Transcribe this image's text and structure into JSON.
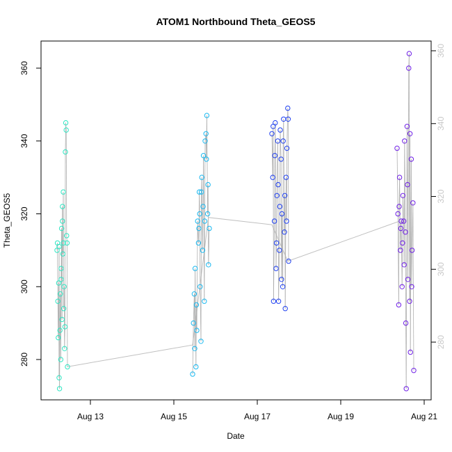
{
  "chart_data": {
    "type": "scatter",
    "title": "ATOM1 Northbound Theta_GEOS5",
    "xlabel": "Date",
    "ylabel": "Theta_GEOS5",
    "x_unit": "days since Aug 12 00:00",
    "xlim": [
      12.0,
      20.9
    ],
    "ylim": [
      271,
      364
    ],
    "x_ticks": [
      {
        "value": 13,
        "label": "Aug 13"
      },
      {
        "value": 15,
        "label": "Aug 15"
      },
      {
        "value": 17,
        "label": "Aug 17"
      },
      {
        "value": 19,
        "label": "Aug 19"
      },
      {
        "value": 21,
        "label": "Aug 21"
      }
    ],
    "y_ticks_left": [
      280,
      300,
      320,
      340,
      360
    ],
    "y_ticks_right": [
      280,
      300,
      320,
      340,
      360
    ],
    "connector_line_color": "#c0c0c0",
    "grid": false,
    "legend": "none",
    "series": [
      {
        "color": "#2ee6c3",
        "x_range": [
          12.2,
          12.45
        ],
        "points": [
          [
            12.2,
            310
          ],
          [
            12.22,
            296
          ],
          [
            12.23,
            286
          ],
          [
            12.25,
            275
          ],
          [
            12.26,
            272
          ],
          [
            12.28,
            298
          ],
          [
            12.3,
            305
          ],
          [
            12.31,
            316
          ],
          [
            12.33,
            322
          ],
          [
            12.35,
            312
          ],
          [
            12.36,
            294
          ],
          [
            12.38,
            283
          ],
          [
            12.4,
            337
          ],
          [
            12.41,
            345
          ],
          [
            12.42,
            343
          ],
          [
            12.44,
            312
          ],
          [
            12.45,
            278
          ],
          [
            12.3,
            302
          ],
          [
            12.32,
            291
          ],
          [
            12.34,
            309
          ],
          [
            12.37,
            300
          ],
          [
            12.39,
            289
          ],
          [
            12.21,
            312
          ],
          [
            12.24,
            301
          ],
          [
            12.27,
            288
          ],
          [
            12.29,
            280
          ],
          [
            12.43,
            314
          ],
          [
            12.25,
            311
          ],
          [
            12.33,
            318
          ],
          [
            12.35,
            326
          ]
        ]
      },
      {
        "color": "#19b8f0",
        "x_range": [
          15.45,
          15.85
        ],
        "points": [
          [
            15.45,
            276
          ],
          [
            15.47,
            290
          ],
          [
            15.49,
            298
          ],
          [
            15.51,
            305
          ],
          [
            15.53,
            278
          ],
          [
            15.55,
            288
          ],
          [
            15.57,
            318
          ],
          [
            15.59,
            312
          ],
          [
            15.61,
            326
          ],
          [
            15.63,
            300
          ],
          [
            15.65,
            285
          ],
          [
            15.67,
            330
          ],
          [
            15.69,
            310
          ],
          [
            15.71,
            336
          ],
          [
            15.73,
            296
          ],
          [
            15.75,
            340
          ],
          [
            15.77,
            342
          ],
          [
            15.79,
            347
          ],
          [
            15.81,
            320
          ],
          [
            15.83,
            306
          ],
          [
            15.85,
            316
          ],
          [
            15.5,
            283
          ],
          [
            15.54,
            295
          ],
          [
            15.6,
            316
          ],
          [
            15.62,
            320
          ],
          [
            15.66,
            326
          ],
          [
            15.7,
            322
          ],
          [
            15.74,
            318
          ],
          [
            15.78,
            335
          ],
          [
            15.82,
            328
          ]
        ]
      },
      {
        "color": "#1e3ff0",
        "x_range": [
          17.35,
          17.75
        ],
        "points": [
          [
            17.35,
            342
          ],
          [
            17.37,
            330
          ],
          [
            17.39,
            296
          ],
          [
            17.41,
            318
          ],
          [
            17.43,
            345
          ],
          [
            17.45,
            305
          ],
          [
            17.47,
            325
          ],
          [
            17.49,
            340
          ],
          [
            17.51,
            296
          ],
          [
            17.53,
            310
          ],
          [
            17.55,
            343
          ],
          [
            17.57,
            335
          ],
          [
            17.59,
            320
          ],
          [
            17.61,
            300
          ],
          [
            17.63,
            346
          ],
          [
            17.65,
            315
          ],
          [
            17.67,
            294
          ],
          [
            17.69,
            330
          ],
          [
            17.71,
            338
          ],
          [
            17.73,
            349
          ],
          [
            17.75,
            307
          ],
          [
            17.38,
            344
          ],
          [
            17.42,
            336
          ],
          [
            17.46,
            312
          ],
          [
            17.5,
            328
          ],
          [
            17.54,
            322
          ],
          [
            17.58,
            302
          ],
          [
            17.62,
            340
          ],
          [
            17.66,
            325
          ],
          [
            17.7,
            318
          ],
          [
            17.74,
            346
          ]
        ]
      },
      {
        "color": "#6e1ee6",
        "x_range": [
          20.35,
          20.75
        ],
        "points": [
          [
            20.35,
            338
          ],
          [
            20.37,
            320
          ],
          [
            20.39,
            295
          ],
          [
            20.41,
            330
          ],
          [
            20.43,
            310
          ],
          [
            20.45,
            318
          ],
          [
            20.47,
            300
          ],
          [
            20.49,
            325
          ],
          [
            20.51,
            318
          ],
          [
            20.53,
            340
          ],
          [
            20.55,
            315
          ],
          [
            20.57,
            272
          ],
          [
            20.59,
            344
          ],
          [
            20.61,
            302
          ],
          [
            20.63,
            360
          ],
          [
            20.64,
            364
          ],
          [
            20.65,
            296
          ],
          [
            20.67,
            282
          ],
          [
            20.69,
            335
          ],
          [
            20.71,
            310
          ],
          [
            20.73,
            323
          ],
          [
            20.75,
            277
          ],
          [
            20.4,
            322
          ],
          [
            20.44,
            316
          ],
          [
            20.48,
            312
          ],
          [
            20.52,
            306
          ],
          [
            20.56,
            290
          ],
          [
            20.6,
            328
          ],
          [
            20.66,
            342
          ],
          [
            20.7,
            300
          ]
        ]
      }
    ],
    "connector_points": [
      [
        12.44,
        278
      ],
      [
        15.45,
        284
      ],
      [
        15.83,
        319
      ],
      [
        17.35,
        317
      ],
      [
        17.73,
        307
      ],
      [
        20.41,
        318
      ]
    ]
  }
}
